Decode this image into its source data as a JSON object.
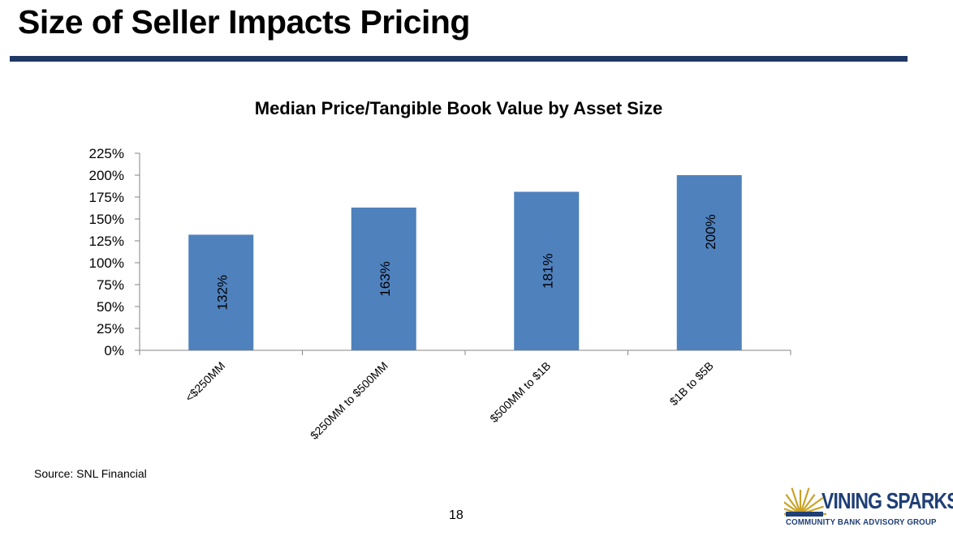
{
  "slide": {
    "title": "Size of Seller Impacts Pricing",
    "source": "Source: SNL Financial",
    "page_number": "18"
  },
  "logo": {
    "name": "VINING SPARKS",
    "tagline": "COMMUNITY BANK ADVISORY GROUP",
    "brand_color": "#1F3F76",
    "mark_color": "#C9A227"
  },
  "colors": {
    "bar": "#4F81BD",
    "rule": "#1F3864",
    "axis": "#868686"
  },
  "chart_data": {
    "type": "bar",
    "title": "Median Price/Tangible Book Value by Asset Size",
    "xlabel": "",
    "ylabel": "",
    "categories": [
      "<$250MM",
      "$250MM to $500MM",
      "$500MM to $1B",
      "$1B to $5B"
    ],
    "values": [
      132,
      163,
      181,
      200
    ],
    "data_labels": [
      "132%",
      "163%",
      "181%",
      "200%"
    ],
    "ylim": [
      0,
      225
    ],
    "yticks": [
      0,
      25,
      50,
      75,
      100,
      125,
      150,
      175,
      200,
      225
    ],
    "ytick_labels": [
      "0%",
      "25%",
      "50%",
      "75%",
      "100%",
      "125%",
      "150%",
      "175%",
      "200%",
      "225%"
    ],
    "grid": false,
    "legend": "none"
  }
}
